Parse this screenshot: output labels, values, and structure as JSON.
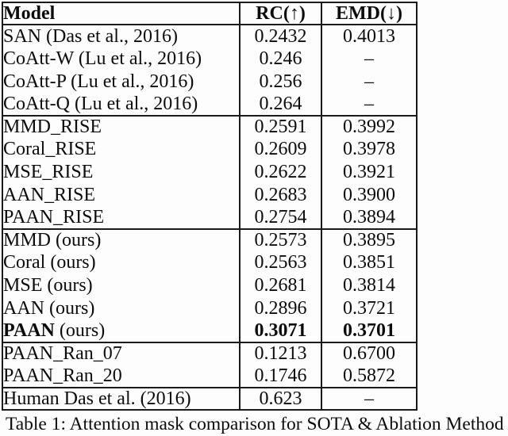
{
  "colors": {
    "background": "#fdfdfd",
    "border": "#1a1a1a",
    "text": "#0c0c0c"
  },
  "table": {
    "headers": [
      "Model",
      "RC(↑)",
      "EMD(↓)"
    ],
    "sections": [
      {
        "rows": [
          {
            "model": "SAN (Das et al., 2016)",
            "rc": "0.2432",
            "emd": "0.4013"
          },
          {
            "model": "CoAtt-W (Lu et al., 2016)",
            "rc": "0.246",
            "emd": "–"
          },
          {
            "model": "CoAtt-P (Lu et al., 2016)",
            "rc": "0.256",
            "emd": "–"
          },
          {
            "model": "CoAtt-Q (Lu et al., 2016)",
            "rc": "0.264",
            "emd": "–"
          }
        ]
      },
      {
        "rows": [
          {
            "model": "MMD_RISE",
            "rc": "0.2591",
            "emd": "0.3992"
          },
          {
            "model": "Coral_RISE",
            "rc": "0.2609",
            "emd": "0.3978"
          },
          {
            "model": "MSE_RISE",
            "rc": "0.2622",
            "emd": "0.3921"
          },
          {
            "model": "AAN_RISE",
            "rc": "0.2683",
            "emd": "0.3900"
          },
          {
            "model": "PAAN_RISE",
            "rc": "0.2754",
            "emd": "0.3894"
          }
        ]
      },
      {
        "rows": [
          {
            "model": "MMD (ours)",
            "rc": "0.2573",
            "emd": "0.3895"
          },
          {
            "model": "Coral (ours)",
            "rc": "0.2563",
            "emd": "0.3851"
          },
          {
            "model": "MSE (ours)",
            "rc": "0.2681",
            "emd": "0.3814"
          },
          {
            "model": "AAN (ours)",
            "rc": "0.2896",
            "emd": "0.3721"
          },
          {
            "model": "PAAN (ours)",
            "rc": "0.3071",
            "emd": "0.3701",
            "bold_model_prefix": "PAAN",
            "bold_values": true
          }
        ]
      },
      {
        "rows": [
          {
            "model": "PAAN_Ran_07",
            "rc": "0.1213",
            "emd": "0.6700"
          },
          {
            "model": "PAAN_Ran_20",
            "rc": "0.1746",
            "emd": "0.5872"
          }
        ]
      },
      {
        "rows": [
          {
            "model": "Human Das et al. (2016)",
            "rc": "0.623",
            "emd": "–"
          }
        ]
      }
    ]
  },
  "caption": {
    "text": "Table 1: Attention mask comparison for SOTA & Ablation Method"
  }
}
